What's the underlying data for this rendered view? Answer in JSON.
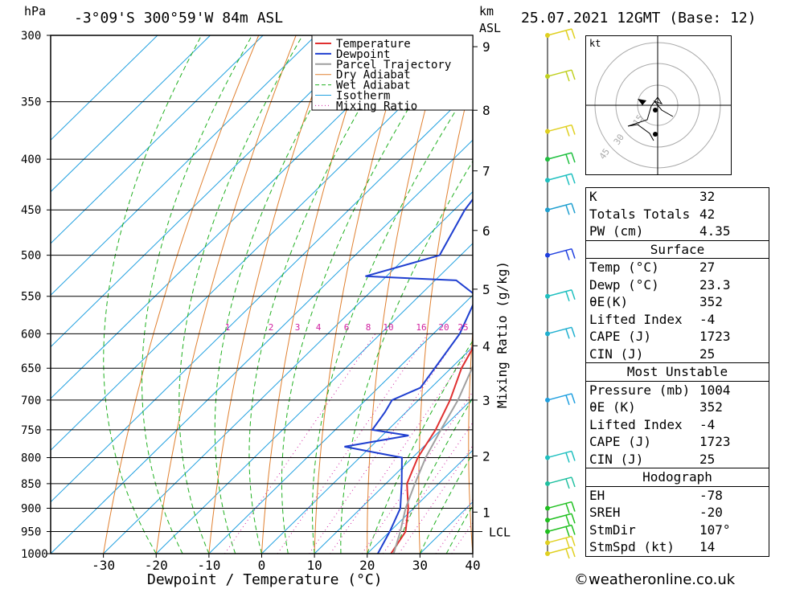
{
  "header": {
    "unit_left": "hPa",
    "location": "-3°09'S  300°59'W  84m  ASL",
    "unit_km": "km",
    "unit_asl": "ASL",
    "datetime": "25.07.2021  12GMT  (Base: 12)"
  },
  "chart_data": {
    "type": "line",
    "title": "-3°09'S  300°59'W  84m  ASL",
    "xlabel": "Dewpoint / Temperature (°C)",
    "ylabel_left": "hPa",
    "ylabel_right": "Mixing Ratio (g/kg)",
    "xlim": [
      -40,
      40
    ],
    "ylim": [
      1000,
      300
    ],
    "x_ticks": [
      "-30",
      "-20",
      "-10",
      "0",
      "10",
      "20",
      "30",
      "40"
    ],
    "pressure_levels": [
      "300",
      "350",
      "400",
      "450",
      "500",
      "550",
      "600",
      "650",
      "700",
      "750",
      "800",
      "850",
      "900",
      "950",
      "1000"
    ],
    "km_ticks": [
      {
        "label": "1",
        "p": 908
      },
      {
        "label": "2",
        "p": 797
      },
      {
        "label": "3",
        "p": 700
      },
      {
        "label": "4",
        "p": 617
      },
      {
        "label": "5",
        "p": 541
      },
      {
        "label": "6",
        "p": 472
      },
      {
        "label": "7",
        "p": 411
      },
      {
        "label": "8",
        "p": 357
      },
      {
        "label": "9",
        "p": 308
      }
    ],
    "lcl": {
      "label": "LCL",
      "p": 950
    },
    "mixing_ratio_labels": [
      "1",
      "2",
      "3",
      "4",
      "6",
      "8",
      "10",
      "16",
      "20",
      "25"
    ],
    "legend": [
      "Temperature",
      "Dewpoint",
      "Parcel Trajectory",
      "Dry Adiabat",
      "Wet Adiabat",
      "Isotherm",
      "Mixing Ratio"
    ],
    "colors": {
      "temperature": "#e03030",
      "dewpoint": "#1f3fd0",
      "parcel": "#a0a0a0",
      "dry_adiabat": "#e08030",
      "wet_adiabat": "#20b020",
      "isotherm": "#20a0e0",
      "mixing_ratio": "#d020a0"
    },
    "series": [
      {
        "name": "Temperature",
        "points": [
          [
            1000,
            24.5
          ],
          [
            950,
            23
          ],
          [
            900,
            19
          ],
          [
            850,
            14
          ],
          [
            800,
            11
          ],
          [
            750,
            9
          ],
          [
            700,
            6
          ],
          [
            650,
            2
          ],
          [
            600,
            -1
          ],
          [
            550,
            -5
          ],
          [
            520,
            -7
          ],
          [
            505,
            -5
          ],
          [
            450,
            -10
          ],
          [
            400,
            -18
          ],
          [
            385,
            -19
          ],
          [
            370,
            -25
          ],
          [
            340,
            -34
          ],
          [
            320,
            -37
          ],
          [
            300,
            -41
          ]
        ]
      },
      {
        "name": "Dewpoint",
        "points": [
          [
            1000,
            22
          ],
          [
            950,
            20
          ],
          [
            900,
            17.5
          ],
          [
            850,
            13
          ],
          [
            800,
            8
          ],
          [
            780,
            -5
          ],
          [
            760,
            5
          ],
          [
            750,
            -3
          ],
          [
            720,
            -4
          ],
          [
            700,
            -5
          ],
          [
            680,
            -2
          ],
          [
            600,
            -5
          ],
          [
            550,
            -9
          ],
          [
            530,
            -16
          ],
          [
            525,
            -34
          ],
          [
            510,
            -28
          ],
          [
            500,
            -24
          ],
          [
            450,
            -28
          ],
          [
            410,
            -30
          ],
          [
            400,
            -25
          ],
          [
            390,
            -16
          ],
          [
            370,
            -15
          ],
          [
            350,
            -19
          ],
          [
            335,
            -19
          ],
          [
            320,
            -27
          ],
          [
            300,
            -29
          ]
        ]
      },
      {
        "name": "Parcel Trajectory",
        "points": [
          [
            1000,
            25
          ],
          [
            950,
            22
          ],
          [
            900,
            18.5
          ],
          [
            850,
            15.5
          ],
          [
            800,
            12.5
          ],
          [
            750,
            10
          ],
          [
            700,
            7.5
          ],
          [
            650,
            4
          ],
          [
            600,
            0.5
          ],
          [
            550,
            -3.5
          ],
          [
            500,
            -8.5
          ],
          [
            450,
            -13.5
          ],
          [
            400,
            -19.5
          ],
          [
            370,
            -23.5
          ]
        ]
      }
    ]
  },
  "wind_barbs": [
    {
      "p": 1000,
      "color": "#e0d020"
    },
    {
      "p": 975,
      "color": "#e0d020"
    },
    {
      "p": 950,
      "color": "#20c020"
    },
    {
      "p": 925,
      "color": "#20c020"
    },
    {
      "p": 900,
      "color": "#20c020"
    },
    {
      "p": 850,
      "color": "#20c0a0"
    },
    {
      "p": 800,
      "color": "#20c0c0"
    },
    {
      "p": 700,
      "color": "#20a0e0"
    },
    {
      "p": 600,
      "color": "#20b0d0"
    },
    {
      "p": 550,
      "color": "#20c0c0"
    },
    {
      "p": 500,
      "color": "#2040e0"
    },
    {
      "p": 450,
      "color": "#20a0d0"
    },
    {
      "p": 420,
      "color": "#20c0c0"
    },
    {
      "p": 400,
      "color": "#20c040"
    },
    {
      "p": 375,
      "color": "#e0d020"
    },
    {
      "p": 330,
      "color": "#c0d020"
    },
    {
      "p": 300,
      "color": "#e0d020"
    }
  ],
  "hodograph": {
    "unit": "kt",
    "ring_labels": [
      "15",
      "30",
      "45"
    ]
  },
  "indices": {
    "general": [
      {
        "label": "K",
        "value": "32"
      },
      {
        "label": "Totals Totals",
        "value": "42"
      },
      {
        "label": "PW (cm)",
        "value": "4.35"
      }
    ],
    "surface": {
      "title": "Surface",
      "rows": [
        {
          "label": "Temp (°C)",
          "value": "27"
        },
        {
          "label": "Dewp (°C)",
          "value": "23.3"
        },
        {
          "label": "θE(K)",
          "value": "352"
        },
        {
          "label": "Lifted Index",
          "value": "-4"
        },
        {
          "label": "CAPE (J)",
          "value": "1723"
        },
        {
          "label": "CIN (J)",
          "value": "25"
        }
      ]
    },
    "most_unstable": {
      "title": "Most Unstable",
      "rows": [
        {
          "label": "Pressure (mb)",
          "value": "1004"
        },
        {
          "label": "θE (K)",
          "value": "352"
        },
        {
          "label": "Lifted Index",
          "value": "-4"
        },
        {
          "label": "CAPE (J)",
          "value": "1723"
        },
        {
          "label": "CIN (J)",
          "value": "25"
        }
      ]
    },
    "hodograph": {
      "title": "Hodograph",
      "rows": [
        {
          "label": "EH",
          "value": "-78"
        },
        {
          "label": "SREH",
          "value": "-20"
        },
        {
          "label": "StmDir",
          "value": "107°"
        },
        {
          "label": "StmSpd (kt)",
          "value": "14"
        }
      ]
    }
  },
  "footer": {
    "copyright": "©weatheronline.co.uk"
  }
}
